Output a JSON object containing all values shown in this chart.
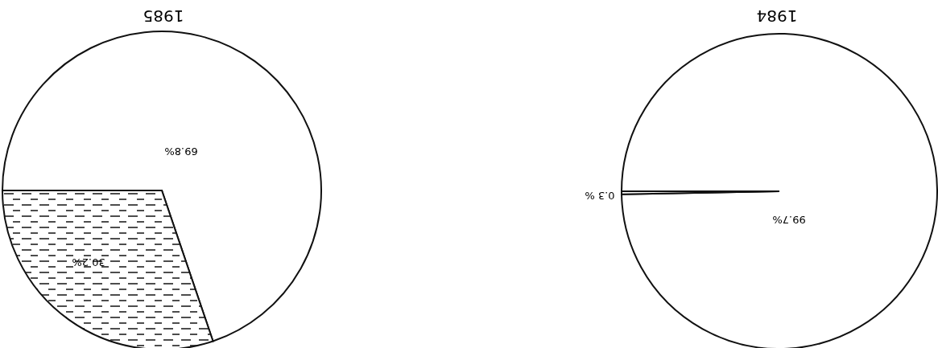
{
  "chart_data": [
    {
      "type": "pie",
      "title": "1985",
      "categories": [
        null,
        null
      ],
      "values": [
        69.8,
        30.2
      ],
      "colors": [
        "#ffffff",
        "#111111"
      ],
      "value_labels": [
        "69.8%",
        "30.2%"
      ]
    },
    {
      "type": "pie",
      "title": "1984",
      "categories": [
        null,
        null
      ],
      "values": [
        99.7,
        0.3
      ],
      "colors": [
        "#ffffff",
        "#111111"
      ],
      "value_labels": [
        "99.7%",
        "0.3 %"
      ]
    }
  ]
}
